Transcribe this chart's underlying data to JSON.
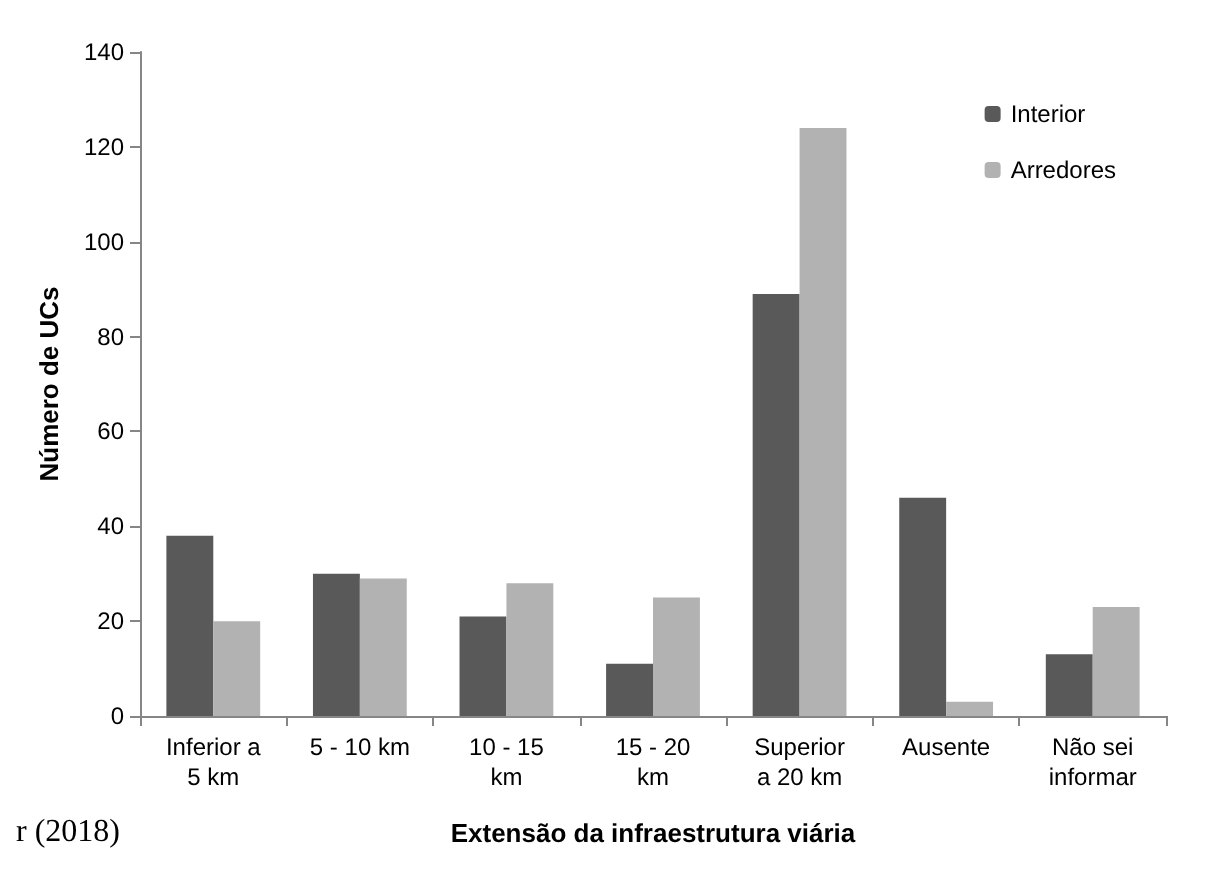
{
  "chart_data": {
    "type": "bar",
    "xlabel": "Extensão da infraestrutura viária",
    "ylabel": "Número de UCs",
    "categories": [
      "Inferior a\n5 km",
      "5 - 10 km",
      "10 - 15\nkm",
      "15 - 20\nkm",
      "Superior\na 20 km",
      "Ausente",
      "Não sei\ninformar"
    ],
    "series": [
      {
        "name": "Interior",
        "color": "#595959",
        "values": [
          38,
          30,
          21,
          11,
          89,
          46,
          13
        ]
      },
      {
        "name": "Arredores",
        "color": "#b2b2b2",
        "values": [
          20,
          29,
          28,
          25,
          124,
          3,
          23
        ]
      }
    ],
    "ylim": [
      0,
      140
    ],
    "yticks": [
      0,
      20,
      40,
      60,
      80,
      100,
      120,
      140
    ],
    "grid": false,
    "legend": "top right",
    "annotations": [
      "r (2018)"
    ]
  }
}
